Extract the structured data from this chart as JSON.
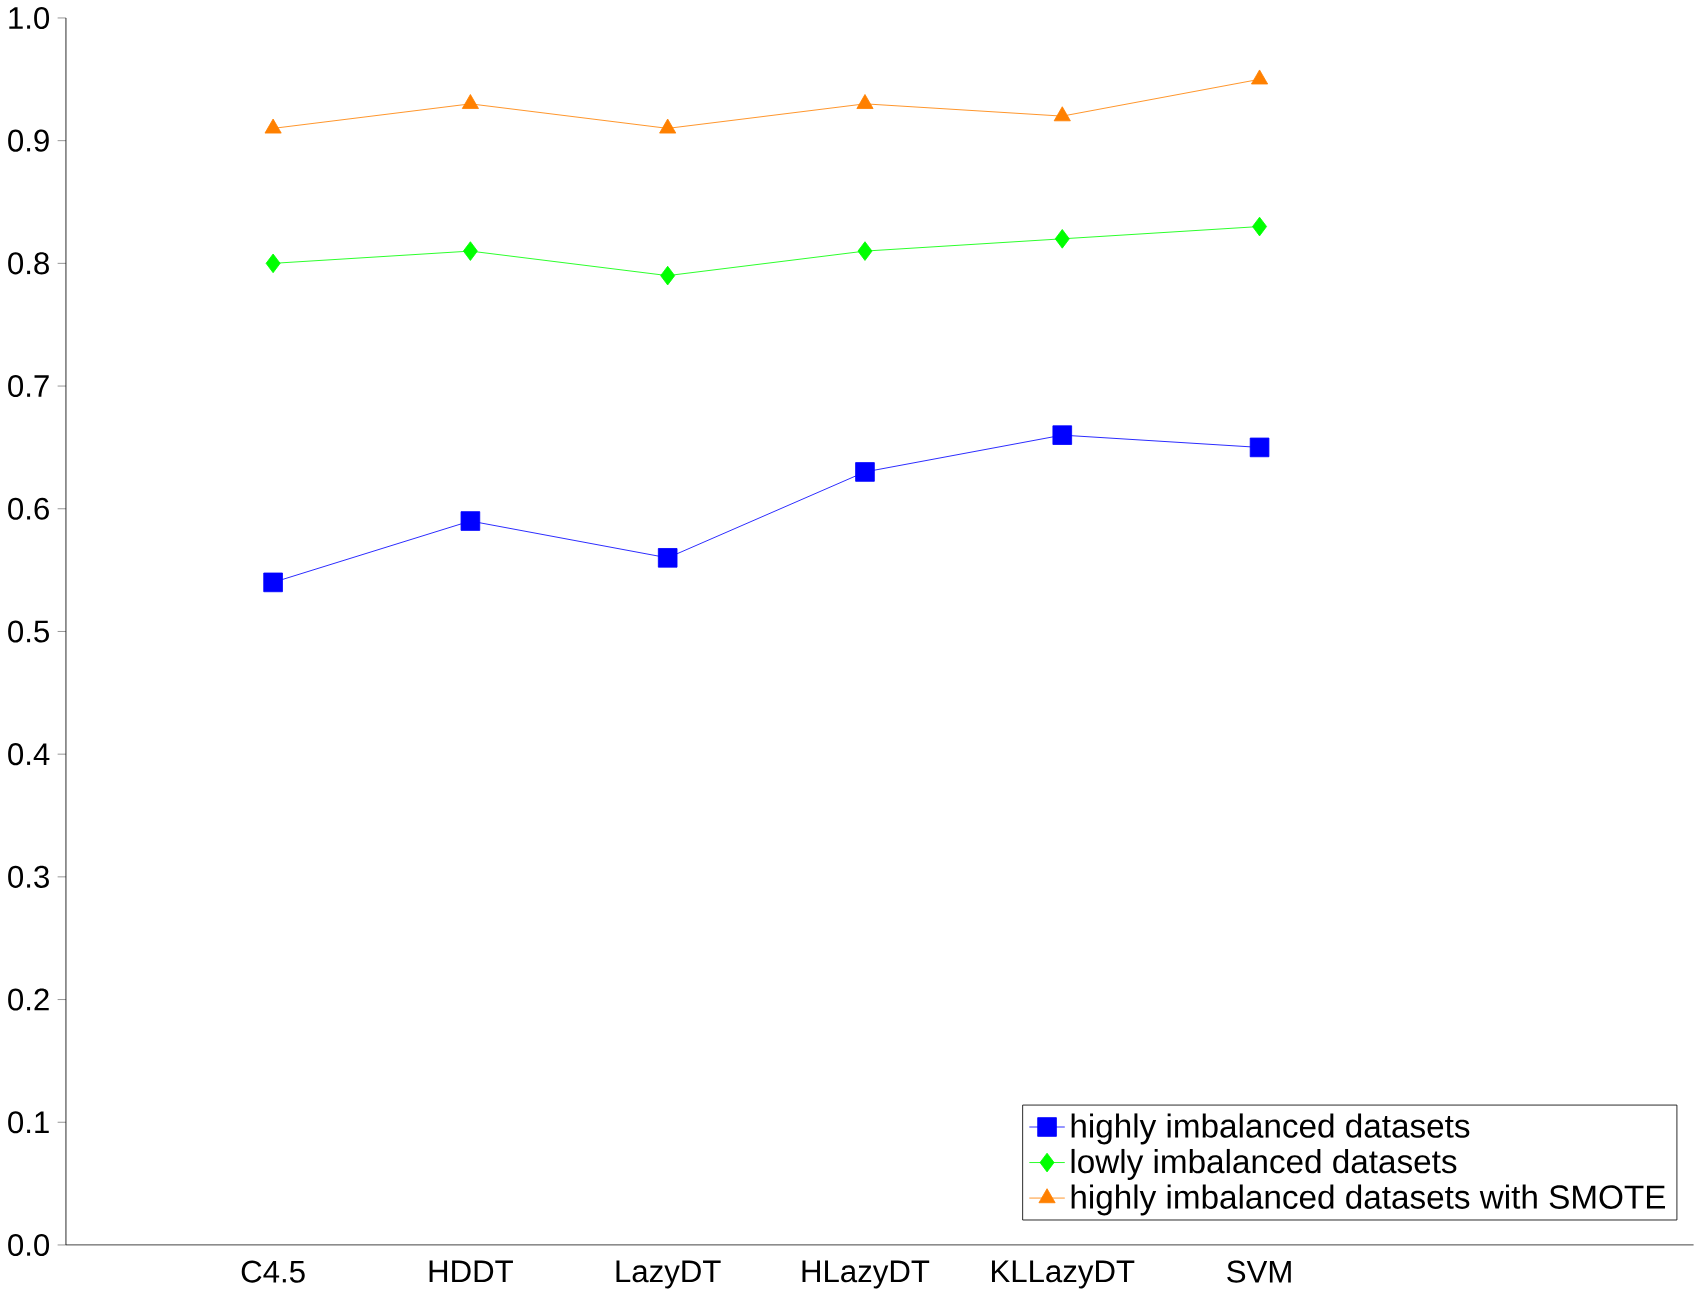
{
  "chart_data": {
    "type": "line",
    "categories": [
      "C4.5",
      "HDDT",
      "LazyDT",
      "HLazyDT",
      "KLLazyDT",
      "SVM"
    ],
    "series": [
      {
        "name": "highly imbalanced datasets",
        "color": "#0000ff",
        "marker": "square",
        "values": [
          0.54,
          0.59,
          0.56,
          0.63,
          0.66,
          0.65
        ]
      },
      {
        "name": "lowly imbalanced datasets",
        "color": "#00ff00",
        "marker": "diamond",
        "values": [
          0.8,
          0.81,
          0.79,
          0.81,
          0.82,
          0.83
        ]
      },
      {
        "name": "highly imbalanced datasets with SMOTE",
        "color": "#ff8000",
        "marker": "triangle",
        "values": [
          0.91,
          0.93,
          0.91,
          0.93,
          0.92,
          0.95
        ]
      }
    ],
    "ylim": [
      0,
      1
    ],
    "yticks": [
      {
        "value": 0,
        "label": "0.0"
      },
      0.1,
      0.2,
      0.3,
      0.4,
      0.5,
      0.6,
      0.7,
      0.8,
      0.9,
      {
        "value": 1,
        "label": "1.0"
      }
    ],
    "grid": false,
    "legend": "bottom right"
  }
}
